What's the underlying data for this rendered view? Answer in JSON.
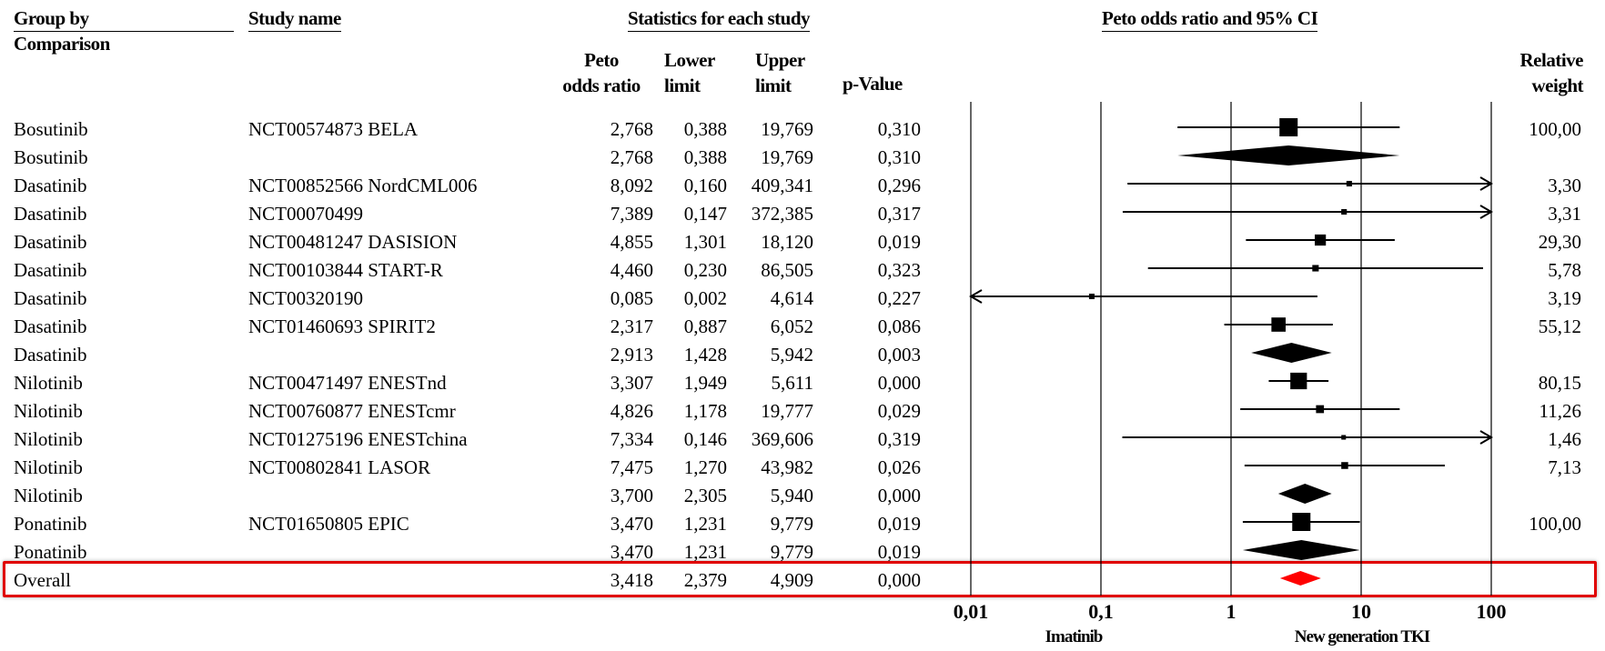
{
  "headers": {
    "group_by": "Group by",
    "comparison": "Comparison",
    "study_name": "Study name",
    "statistics": "Statistics for each study",
    "plot_title": "Peto odds ratio and 95% CI",
    "col_or_1": "Peto",
    "col_or_2": "odds ratio",
    "col_lo_1": "Lower",
    "col_lo_2": "limit",
    "col_up_1": "Upper",
    "col_up_2": "limit",
    "col_pv": "p-Value",
    "col_wt_1": "Relative",
    "col_wt_2": "weight"
  },
  "chart_data": {
    "type": "forest",
    "title": "Peto odds ratio and 95% CI",
    "x_scale": "log",
    "xlim": [
      0.01,
      100
    ],
    "x_ticks": [
      "0,01",
      "0,1",
      "1",
      "10",
      "100"
    ],
    "x_tick_values": [
      0.01,
      0.1,
      1,
      10,
      100
    ],
    "footer_left": "Imatinib",
    "footer_right": "New generation TKI",
    "rows": [
      {
        "group": "Bosutinib",
        "study": "NCT00574873 BELA",
        "or": "2,768",
        "lower": "0,388",
        "upper": "19,769",
        "p": "0,310",
        "weight": "100,00",
        "or_v": 2.768,
        "lower_v": 0.388,
        "upper_v": 19.769,
        "w_v": 100.0,
        "kind": "study"
      },
      {
        "group": "Bosutinib",
        "study": "",
        "or": "2,768",
        "lower": "0,388",
        "upper": "19,769",
        "p": "0,310",
        "weight": "",
        "or_v": 2.768,
        "lower_v": 0.388,
        "upper_v": 19.769,
        "kind": "subtotal"
      },
      {
        "group": "Dasatinib",
        "study": "NCT00852566 NordCML006",
        "or": "8,092",
        "lower": "0,160",
        "upper": "409,341",
        "p": "0,296",
        "weight": "3,30",
        "or_v": 8.092,
        "lower_v": 0.16,
        "upper_v": 409.341,
        "w_v": 3.3,
        "kind": "study"
      },
      {
        "group": "Dasatinib",
        "study": "NCT00070499",
        "or": "7,389",
        "lower": "0,147",
        "upper": "372,385",
        "p": "0,317",
        "weight": "3,31",
        "or_v": 7.389,
        "lower_v": 0.147,
        "upper_v": 372.385,
        "w_v": 3.31,
        "kind": "study"
      },
      {
        "group": "Dasatinib",
        "study": "NCT00481247 DASISION",
        "or": "4,855",
        "lower": "1,301",
        "upper": "18,120",
        "p": "0,019",
        "weight": "29,30",
        "or_v": 4.855,
        "lower_v": 1.301,
        "upper_v": 18.12,
        "w_v": 29.3,
        "kind": "study"
      },
      {
        "group": "Dasatinib",
        "study": "NCT00103844 START-R",
        "or": "4,460",
        "lower": "0,230",
        "upper": "86,505",
        "p": "0,323",
        "weight": "5,78",
        "or_v": 4.46,
        "lower_v": 0.23,
        "upper_v": 86.505,
        "w_v": 5.78,
        "kind": "study"
      },
      {
        "group": "Dasatinib",
        "study": "NCT00320190",
        "or": "0,085",
        "lower": "0,002",
        "upper": "4,614",
        "p": "0,227",
        "weight": "3,19",
        "or_v": 0.085,
        "lower_v": 0.002,
        "upper_v": 4.614,
        "w_v": 3.19,
        "kind": "study"
      },
      {
        "group": "Dasatinib",
        "study": "NCT01460693 SPIRIT2",
        "or": "2,317",
        "lower": "0,887",
        "upper": "6,052",
        "p": "0,086",
        "weight": "55,12",
        "or_v": 2.317,
        "lower_v": 0.887,
        "upper_v": 6.052,
        "w_v": 55.12,
        "kind": "study"
      },
      {
        "group": "Dasatinib",
        "study": "",
        "or": "2,913",
        "lower": "1,428",
        "upper": "5,942",
        "p": "0,003",
        "weight": "",
        "or_v": 2.913,
        "lower_v": 1.428,
        "upper_v": 5.942,
        "kind": "subtotal"
      },
      {
        "group": "Nilotinib",
        "study": "NCT00471497 ENESTnd",
        "or": "3,307",
        "lower": "1,949",
        "upper": "5,611",
        "p": "0,000",
        "weight": "80,15",
        "or_v": 3.307,
        "lower_v": 1.949,
        "upper_v": 5.611,
        "w_v": 80.15,
        "kind": "study"
      },
      {
        "group": "Nilotinib",
        "study": "NCT00760877 ENESTcmr",
        "or": "4,826",
        "lower": "1,178",
        "upper": "19,777",
        "p": "0,029",
        "weight": "11,26",
        "or_v": 4.826,
        "lower_v": 1.178,
        "upper_v": 19.777,
        "w_v": 11.26,
        "kind": "study"
      },
      {
        "group": "Nilotinib",
        "study": "NCT01275196 ENESTchina",
        "or": "7,334",
        "lower": "0,146",
        "upper": "369,606",
        "p": "0,319",
        "weight": "1,46",
        "or_v": 7.334,
        "lower_v": 0.146,
        "upper_v": 369.606,
        "w_v": 1.46,
        "kind": "study"
      },
      {
        "group": "Nilotinib",
        "study": "NCT00802841 LASOR",
        "or": "7,475",
        "lower": "1,270",
        "upper": "43,982",
        "p": "0,026",
        "weight": "7,13",
        "or_v": 7.475,
        "lower_v": 1.27,
        "upper_v": 43.982,
        "w_v": 7.13,
        "kind": "study"
      },
      {
        "group": "Nilotinib",
        "study": "",
        "or": "3,700",
        "lower": "2,305",
        "upper": "5,940",
        "p": "0,000",
        "weight": "",
        "or_v": 3.7,
        "lower_v": 2.305,
        "upper_v": 5.94,
        "kind": "subtotal"
      },
      {
        "group": "Ponatinib",
        "study": "NCT01650805 EPIC",
        "or": "3,470",
        "lower": "1,231",
        "upper": "9,779",
        "p": "0,019",
        "weight": "100,00",
        "or_v": 3.47,
        "lower_v": 1.231,
        "upper_v": 9.779,
        "w_v": 100.0,
        "kind": "study"
      },
      {
        "group": "Ponatinib",
        "study": "",
        "or": "3,470",
        "lower": "1,231",
        "upper": "9,779",
        "p": "0,019",
        "weight": "",
        "or_v": 3.47,
        "lower_v": 1.231,
        "upper_v": 9.779,
        "kind": "subtotal"
      },
      {
        "group": "Overall",
        "study": "",
        "or": "3,418",
        "lower": "2,379",
        "upper": "4,909",
        "p": "0,000",
        "weight": "",
        "or_v": 3.418,
        "lower_v": 2.379,
        "upper_v": 4.909,
        "kind": "overall"
      }
    ],
    "colors": {
      "marks": "#000000",
      "overall": "#ff0000",
      "highlight_border": "#e00000"
    }
  }
}
